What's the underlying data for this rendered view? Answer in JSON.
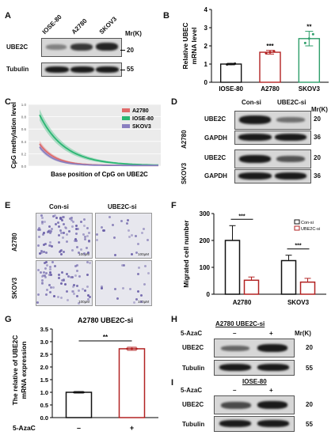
{
  "panels": {
    "A": {
      "label": "A",
      "lanes": [
        "IOSE-80",
        "A2780",
        "SKOV3"
      ],
      "rows": [
        "UBE2C",
        "Tubulin"
      ],
      "mr_label": "Mr(K)",
      "markers": [
        "20",
        "55"
      ],
      "band_intensity": {
        "UBE2C": [
          0.4,
          0.85,
          0.95
        ],
        "Tubulin": [
          1,
          1,
          1
        ]
      }
    },
    "B": {
      "label": "B"
    },
    "C": {
      "label": "C"
    },
    "D": {
      "label": "D",
      "lanes": [
        "Con-si",
        "UBE2C-si"
      ],
      "mr_label": "Mr(K)",
      "groups": [
        {
          "cell": "A2780",
          "rows": [
            "UBE2C",
            "GAPDH"
          ],
          "markers": [
            "20",
            "36"
          ]
        },
        {
          "cell": "SKOV3",
          "rows": [
            "UBE2C",
            "GAPDH"
          ],
          "markers": [
            "20",
            "36"
          ]
        }
      ]
    },
    "E": {
      "label": "E",
      "columns": [
        "Con-si",
        "UBE2C-si"
      ],
      "rows": [
        "A2780",
        "SKOV3"
      ],
      "scalebar": "100μM"
    },
    "F": {
      "label": "F"
    },
    "G": {
      "label": "G"
    },
    "H": {
      "label": "H",
      "title": "A2780 UBE2C-si",
      "treatment": "5-AzaC",
      "lanes": [
        "–",
        "+"
      ],
      "mr_label": "Mr(K)",
      "rows": [
        "UBE2C",
        "Tubulin"
      ],
      "markers": [
        "20",
        "55"
      ]
    },
    "I": {
      "label": "I",
      "title": "IOSE-80",
      "treatment": "5-AzaC",
      "lanes": [
        "–",
        "+"
      ],
      "rows": [
        "UBE2C",
        "Tubulin"
      ],
      "markers": [
        "20",
        "55"
      ]
    }
  },
  "chart_data": [
    {
      "id": "B",
      "type": "bar",
      "categories": [
        "IOSE-80",
        "A2780",
        "SKOV3"
      ],
      "values": [
        1.0,
        1.65,
        2.4
      ],
      "errors": [
        0.04,
        0.1,
        0.4
      ],
      "colors": [
        "#111111",
        "#b22222",
        "#2e9e6a"
      ],
      "ylabel": "Relative UBEC\nmRNA level",
      "ylim": [
        0,
        4
      ],
      "yticks": [
        "0",
        "1",
        "2",
        "3",
        "4"
      ],
      "significance": [
        "",
        "***",
        "**"
      ]
    },
    {
      "id": "C",
      "type": "line",
      "series": [
        {
          "name": "A2780",
          "color": "#e06a6a"
        },
        {
          "name": "IOSE-80",
          "color": "#2bb673"
        },
        {
          "name": "SKOV3",
          "color": "#8a7fc0"
        }
      ],
      "ylabel": "CpG methylation level",
      "xlabel": "Base position of CpG on UBE2C",
      "yticks": [
        "0.0",
        "0.2",
        "0.4",
        "0.6",
        "0.8",
        "1.0"
      ],
      "ylim": [
        0,
        1.0
      ]
    },
    {
      "id": "F",
      "type": "bar",
      "categories": [
        "A2780",
        "SKOV3"
      ],
      "series": [
        {
          "name": "Con-si",
          "values": [
            200,
            125
          ],
          "errors": [
            55,
            20
          ],
          "color": "#111111"
        },
        {
          "name": "UBE2C-si",
          "values": [
            52,
            45
          ],
          "errors": [
            12,
            14
          ],
          "color": "#b22222"
        }
      ],
      "ylabel": "Migrated cell number",
      "ylim": [
        0,
        300
      ],
      "yticks": [
        "0",
        "100",
        "200",
        "300"
      ],
      "significance": [
        "***",
        "***"
      ]
    },
    {
      "id": "G",
      "type": "bar",
      "title": "A2780 UBE2C-si",
      "categories": [
        "–",
        "+"
      ],
      "values": [
        1.0,
        2.72
      ],
      "errors": [
        0.03,
        0.06
      ],
      "colors": [
        "#111111",
        "#b22222"
      ],
      "ylabel": "The relative of UBE2C\nmRNA expression",
      "xlabel": "5-AzaC",
      "ylim": [
        0,
        3.5
      ],
      "yticks": [
        "0.0",
        "0.5",
        "1.0",
        "1.5",
        "2.0",
        "2.5",
        "3.0",
        "3.5"
      ],
      "significance": "**"
    }
  ]
}
